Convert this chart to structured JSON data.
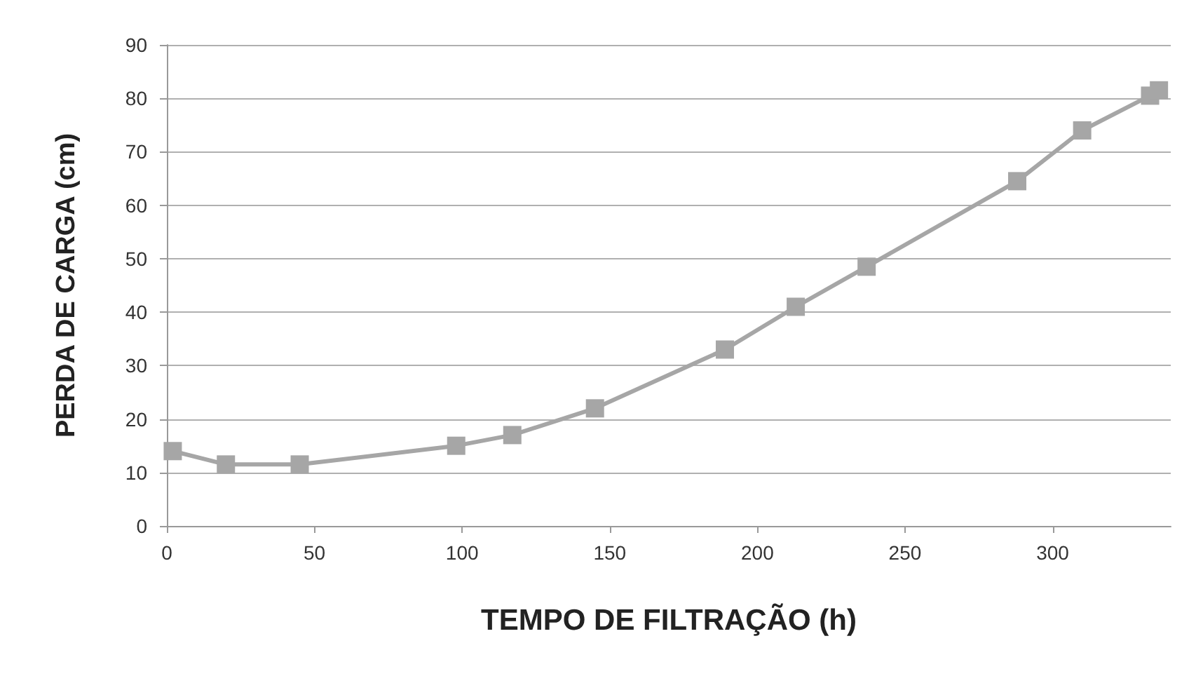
{
  "chart_data": {
    "type": "line",
    "xlabel": "TEMPO DE FILTRAÇÃO (h)",
    "ylabel": "PERDA DE CARGA (cm)",
    "x": [
      2,
      20,
      45,
      98,
      117,
      145,
      189,
      213,
      237,
      288,
      310,
      333,
      336
    ],
    "series": [
      {
        "color": "#a6a6a6",
        "values": [
          14,
          11.5,
          11.5,
          15,
          17,
          22,
          33,
          41,
          48.5,
          64.5,
          74,
          80.5,
          81.5
        ]
      }
    ],
    "xlim": [
      0,
      340
    ],
    "xticks": [
      0,
      50,
      100,
      150,
      200,
      250,
      300
    ],
    "ylim": [
      0,
      90
    ],
    "yticks": [
      0,
      10,
      20,
      30,
      40,
      50,
      60,
      70,
      80,
      90
    ],
    "grid": "y",
    "marker": "square",
    "line_style": "solid"
  }
}
